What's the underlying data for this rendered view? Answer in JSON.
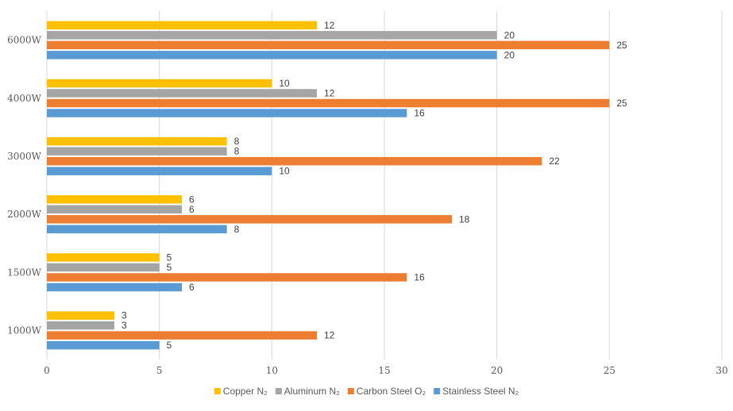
{
  "chart_data": {
    "type": "bar",
    "orientation": "horizontal",
    "categories": [
      "1000W",
      "1500W",
      "2000W",
      "3000W",
      "4000W",
      "6000W"
    ],
    "series": [
      {
        "name": "Copper N₂",
        "color": "#FFC000",
        "values": [
          3,
          5,
          6,
          8,
          10,
          12
        ]
      },
      {
        "name": "Aluminum N₂",
        "color": "#A5A5A5",
        "values": [
          3,
          5,
          6,
          8,
          12,
          20
        ]
      },
      {
        "name": "Carbon Steel O₂",
        "color": "#ED7D31",
        "values": [
          12,
          16,
          18,
          22,
          25,
          25
        ]
      },
      {
        "name": "Stainless Steel N₂",
        "color": "#5B9BD5",
        "values": [
          5,
          6,
          8,
          10,
          16,
          20
        ]
      }
    ],
    "xlim": [
      0,
      30
    ],
    "xticks": [
      "0",
      "5",
      "10",
      "15",
      "20",
      "25",
      "30"
    ],
    "grid": true,
    "legend_position": "bottom",
    "data_labels": true
  }
}
